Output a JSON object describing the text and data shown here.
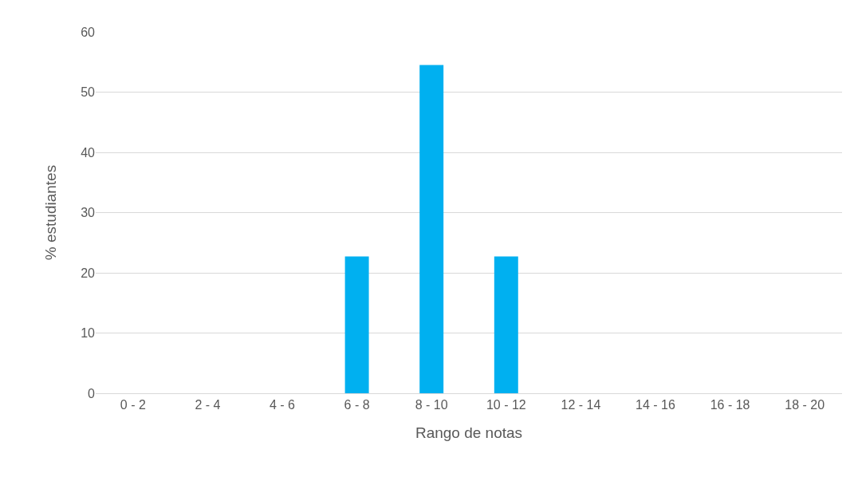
{
  "chart_data": {
    "type": "bar",
    "xlabel": "Rango de notas",
    "ylabel": "% estudiantes",
    "categories": [
      "0 - 2",
      "2 - 4",
      "4 - 6",
      "6 - 8",
      "8 - 10",
      "10 - 12",
      "12 - 14",
      "14 - 16",
      "16 - 18",
      "18 - 20"
    ],
    "values": [
      0,
      0,
      0,
      22.7,
      54.5,
      22.7,
      0,
      0,
      0,
      0
    ],
    "color": "#00b0f0",
    "ylim": [
      0,
      60
    ],
    "yticks": [
      0,
      10,
      20,
      30,
      40,
      50,
      60
    ],
    "grid": "y"
  }
}
